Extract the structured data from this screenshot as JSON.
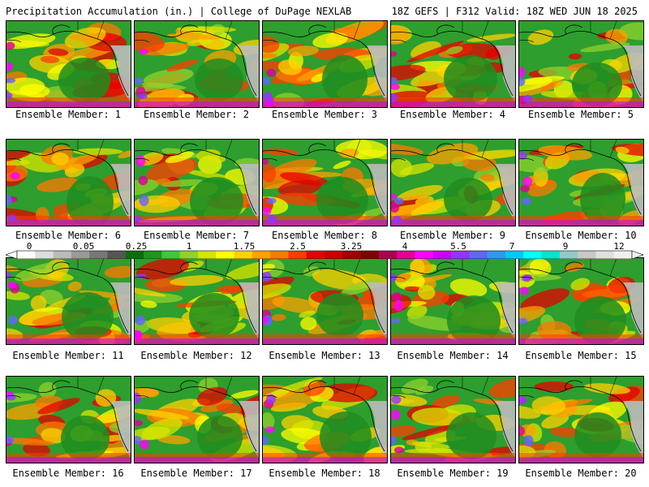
{
  "header": {
    "title_left": "Precipitation Accumulation (in.) | College of DuPage NEXLAB",
    "title_right": "18Z GEFS | F312 Valid: 18Z WED JUN 18 2025"
  },
  "panels": [
    {
      "label": "Ensemble Member: 1"
    },
    {
      "label": "Ensemble Member: 2"
    },
    {
      "label": "Ensemble Member: 3"
    },
    {
      "label": "Ensemble Member: 4"
    },
    {
      "label": "Ensemble Member: 5"
    },
    {
      "label": "Ensemble Member: 6"
    },
    {
      "label": "Ensemble Member: 7"
    },
    {
      "label": "Ensemble Member: 8"
    },
    {
      "label": "Ensemble Member: 9"
    },
    {
      "label": "Ensemble Member: 10"
    },
    {
      "label": "Ensemble Member: 11"
    },
    {
      "label": "Ensemble Member: 12"
    },
    {
      "label": "Ensemble Member: 13"
    },
    {
      "label": "Ensemble Member: 14"
    },
    {
      "label": "Ensemble Member: 15"
    },
    {
      "label": "Ensemble Member: 16"
    },
    {
      "label": "Ensemble Member: 17"
    },
    {
      "label": "Ensemble Member: 18"
    },
    {
      "label": "Ensemble Member: 19"
    },
    {
      "label": "Ensemble Member: 20"
    }
  ],
  "colorbar": {
    "labels": [
      "0",
      "0.05",
      "0.25",
      "1",
      "1.75",
      "2.5",
      "3.25",
      "4",
      "5.5",
      "7",
      "9",
      "12"
    ],
    "colors": [
      "#ffffff",
      "#dddddd",
      "#bbbbbb",
      "#999999",
      "#777777",
      "#555555",
      "#0a6e0a",
      "#1e961e",
      "#3cc83c",
      "#8fd22d",
      "#d2e600",
      "#ffff00",
      "#ffd200",
      "#ffa000",
      "#ff7800",
      "#ff3c00",
      "#e60000",
      "#c80000",
      "#a00000",
      "#800000",
      "#aa0050",
      "#dc0096",
      "#ff00ff",
      "#c800ff",
      "#9632ff",
      "#6464ff",
      "#3296ff",
      "#00c8ff",
      "#00ffff",
      "#00e6c8",
      "#96c8c8",
      "#c8c8c8",
      "#e0e0e0",
      "#f0f0f0"
    ]
  }
}
